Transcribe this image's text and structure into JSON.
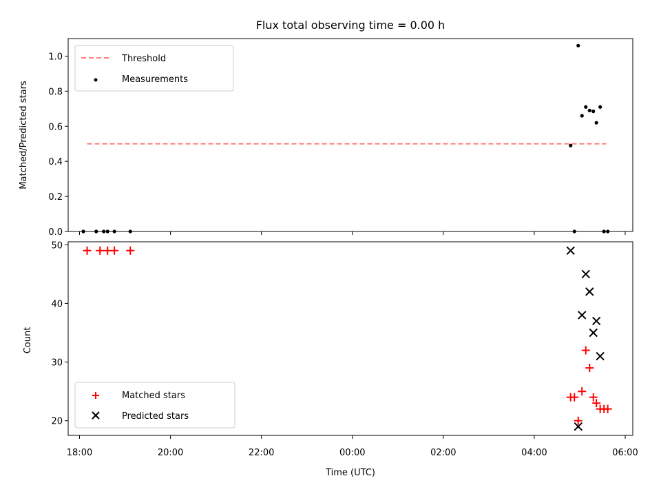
{
  "chart_data": [
    {
      "type": "scatter",
      "title": "Flux total observing time = 0.00 h",
      "xlabel": "",
      "ylabel": "Matched/Predicted stars",
      "ylim": [
        0,
        1.1
      ],
      "yticks": [
        "0.0",
        "0.2",
        "0.4",
        "0.6",
        "0.8",
        "1.0"
      ],
      "ytick_values": [
        0,
        0.2,
        0.4,
        0.6,
        0.8,
        1.0
      ],
      "legend_position": "upper-left",
      "threshold": {
        "name": "Threshold",
        "value": 0.5,
        "x_start": "18:10",
        "x_end": "05:35",
        "color": "#ff7f7f"
      },
      "series": [
        {
          "name": "Measurements",
          "marker": "dot",
          "color": "#000000",
          "points": [
            {
              "x": "18:05",
              "y": 0.0
            },
            {
              "x": "18:22",
              "y": 0.0
            },
            {
              "x": "18:32",
              "y": 0.0
            },
            {
              "x": "18:37",
              "y": 0.0
            },
            {
              "x": "18:46",
              "y": 0.0
            },
            {
              "x": "19:07",
              "y": 0.0
            },
            {
              "x": "04:48",
              "y": 0.49
            },
            {
              "x": "04:53",
              "y": 0.0
            },
            {
              "x": "04:58",
              "y": 1.06
            },
            {
              "x": "05:03",
              "y": 0.66
            },
            {
              "x": "05:08",
              "y": 0.71
            },
            {
              "x": "05:13",
              "y": 0.69
            },
            {
              "x": "05:18",
              "y": 0.685
            },
            {
              "x": "05:22",
              "y": 0.62
            },
            {
              "x": "05:27",
              "y": 0.71
            },
            {
              "x": "05:32",
              "y": 0.0
            },
            {
              "x": "05:37",
              "y": 0.0
            }
          ]
        }
      ]
    },
    {
      "type": "scatter",
      "title": "",
      "xlabel": "Time (UTC)",
      "ylabel": "Count",
      "ylim": [
        17.5,
        50.5
      ],
      "yticks": [
        "20",
        "30",
        "40",
        "50"
      ],
      "ytick_values": [
        20,
        30,
        40,
        50
      ],
      "xlim": [
        "17:45",
        "06:10"
      ],
      "xticks": [
        "18:00",
        "20:00",
        "22:00",
        "00:00",
        "02:00",
        "04:00",
        "06:00"
      ],
      "legend_position": "lower-left",
      "series": [
        {
          "name": "Matched stars",
          "marker": "plus",
          "color": "#ff0000",
          "points": [
            {
              "x": "18:10",
              "y": 49
            },
            {
              "x": "18:27",
              "y": 49
            },
            {
              "x": "18:37",
              "y": 49
            },
            {
              "x": "18:46",
              "y": 49
            },
            {
              "x": "19:07",
              "y": 49
            },
            {
              "x": "04:48",
              "y": 24
            },
            {
              "x": "04:53",
              "y": 24
            },
            {
              "x": "04:58",
              "y": 20
            },
            {
              "x": "05:03",
              "y": 25
            },
            {
              "x": "05:08",
              "y": 32
            },
            {
              "x": "05:13",
              "y": 29
            },
            {
              "x": "05:18",
              "y": 24
            },
            {
              "x": "05:22",
              "y": 23
            },
            {
              "x": "05:27",
              "y": 22
            },
            {
              "x": "05:32",
              "y": 22
            },
            {
              "x": "05:37",
              "y": 22
            }
          ]
        },
        {
          "name": "Predicted stars",
          "marker": "x",
          "color": "#000000",
          "points": [
            {
              "x": "04:48",
              "y": 49
            },
            {
              "x": "04:58",
              "y": 19
            },
            {
              "x": "05:03",
              "y": 38
            },
            {
              "x": "05:08",
              "y": 45
            },
            {
              "x": "05:13",
              "y": 42
            },
            {
              "x": "05:18",
              "y": 35
            },
            {
              "x": "05:22",
              "y": 37
            },
            {
              "x": "05:27",
              "y": 31
            }
          ]
        }
      ]
    }
  ]
}
